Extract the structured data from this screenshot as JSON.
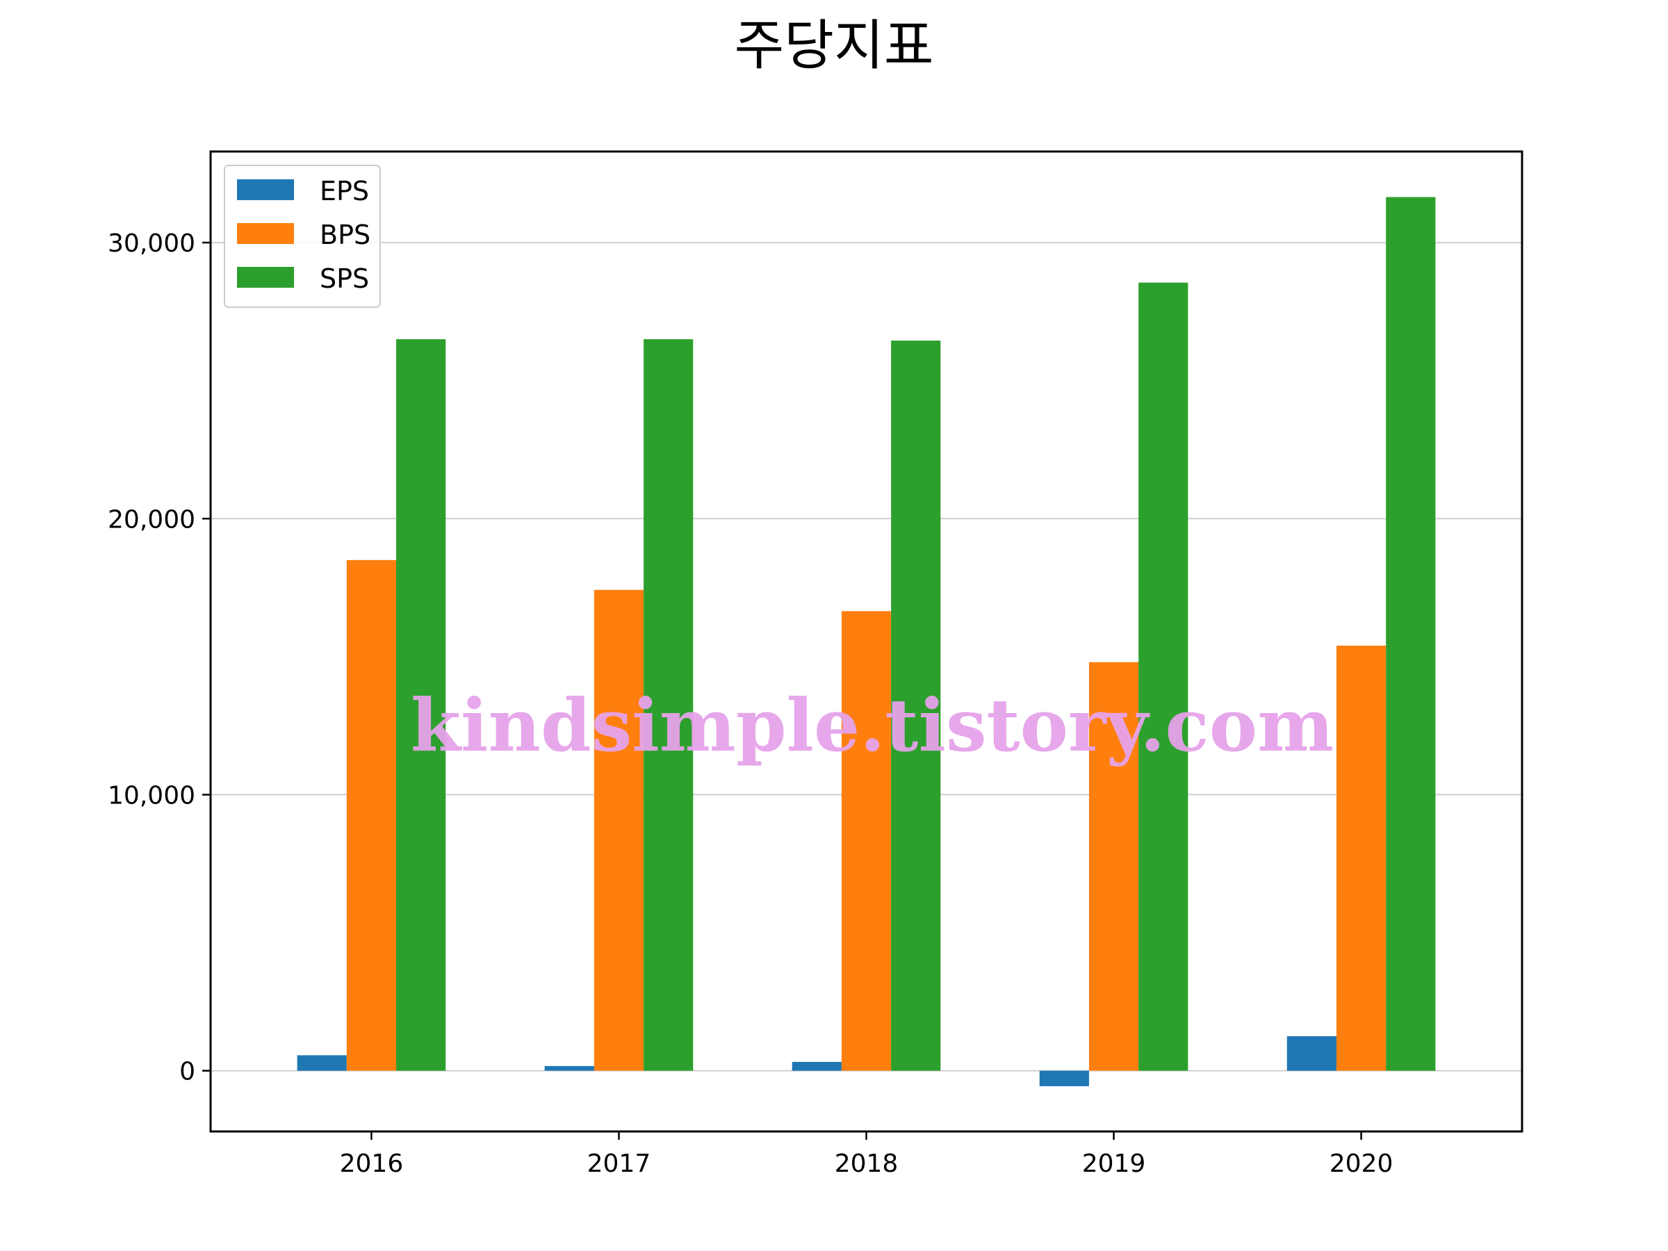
{
  "chart_data": {
    "type": "bar",
    "title": "주당지표",
    "xlabel": "",
    "ylabel": "",
    "categories": [
      "2016",
      "2017",
      "2018",
      "2019",
      "2020"
    ],
    "series": [
      {
        "name": "EPS",
        "color": "#1f77b4",
        "values": [
          560,
          170,
          320,
          -560,
          1250
        ]
      },
      {
        "name": "BPS",
        "color": "#ff7f0e",
        "values": [
          18500,
          17420,
          16650,
          14800,
          15400
        ]
      },
      {
        "name": "SPS",
        "color": "#2ca02c",
        "values": [
          26500,
          26500,
          26450,
          28550,
          31650
        ]
      }
    ],
    "ylim": [
      -2200,
      33300
    ],
    "yticks": [
      0,
      10000,
      20000,
      30000
    ],
    "ytick_labels": [
      "0",
      "10,000",
      "20,000",
      "30,000"
    ],
    "grid": "horizontal",
    "legend_position": "top-left",
    "watermark": "kindsimple.tistory.com"
  }
}
